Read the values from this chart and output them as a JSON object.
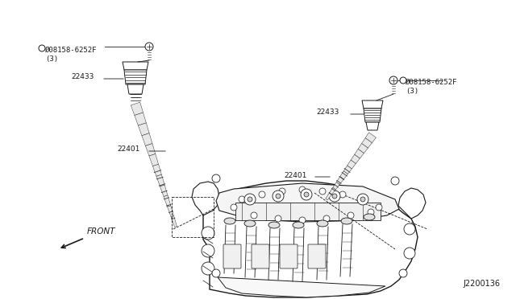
{
  "bg_color": "#ffffff",
  "text_color": "#1a1a1a",
  "line_color": "#1a1a1a",
  "diagram_ref": "J2200136",
  "bolt_label_left": "Ø08158-6252F\n(3)",
  "bolt_label_right": "Ø08158-6252F\n(3)",
  "label_22433": "22433",
  "label_22401": "22401",
  "front_text": "FRONT",
  "font_size_label": 6.5,
  "font_size_ref": 7.0
}
